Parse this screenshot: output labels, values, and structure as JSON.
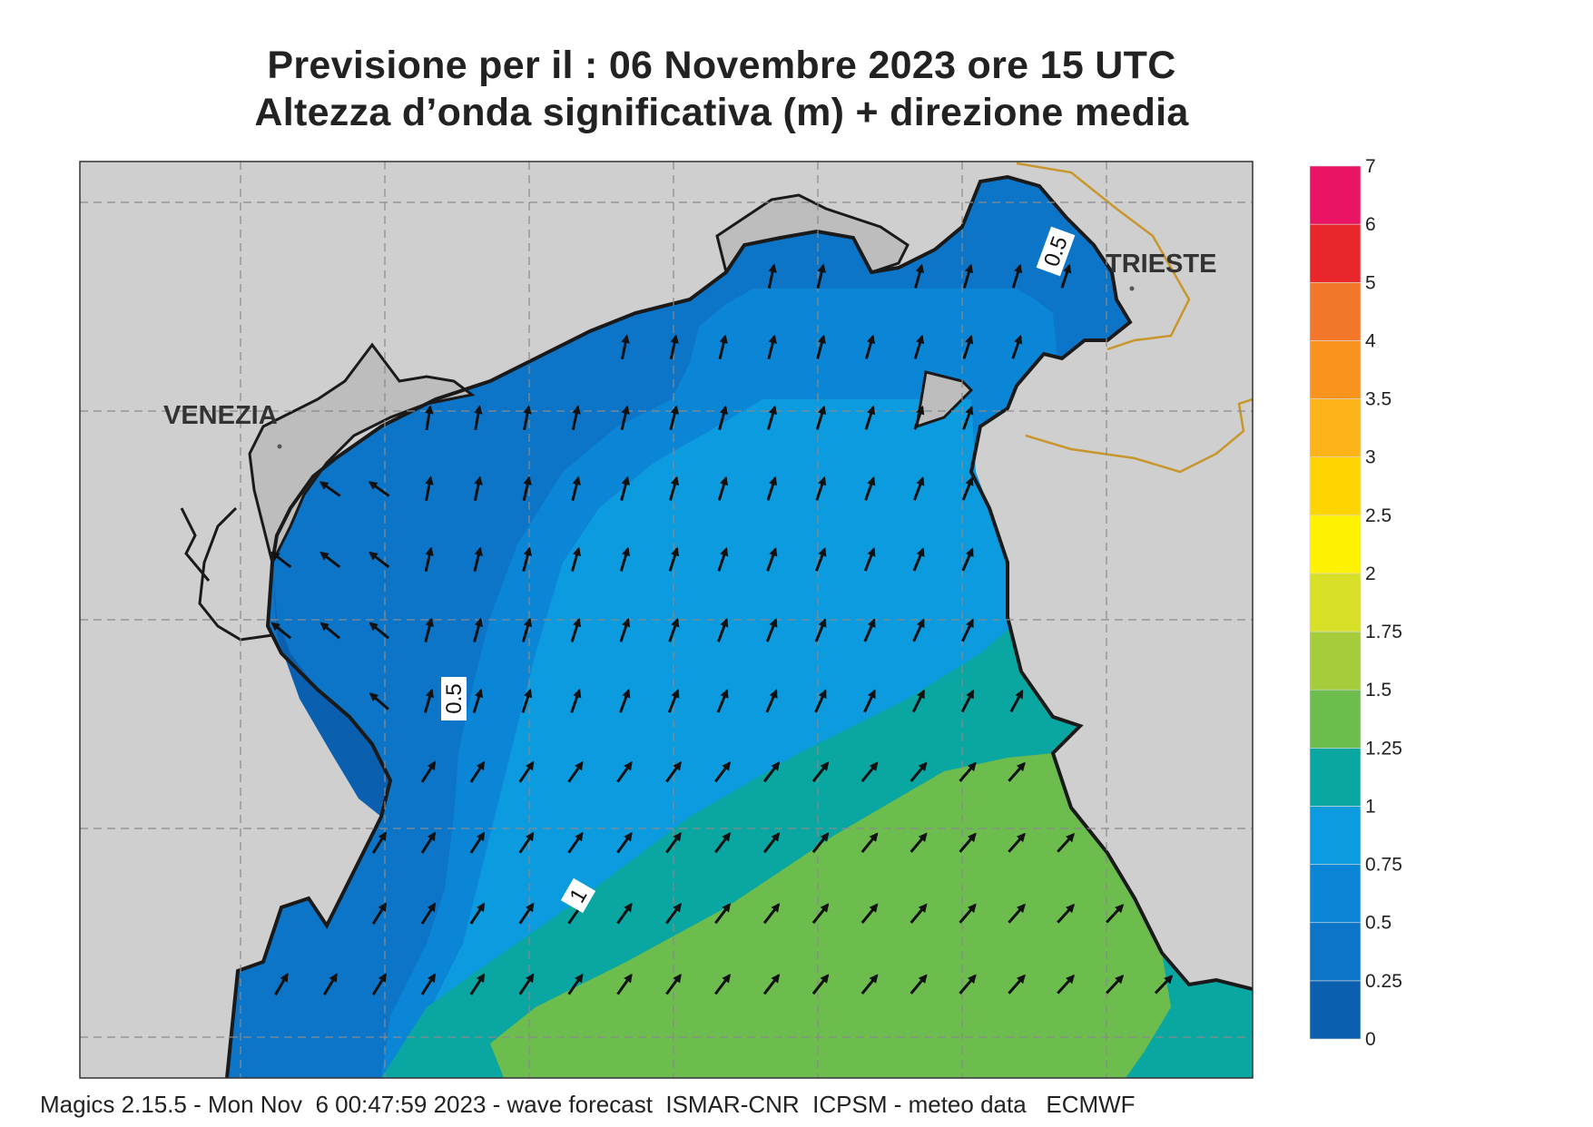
{
  "title": {
    "line1": "Previsione per il  :  06 Novembre  2023   ore 15 UTC",
    "line2": "Altezza d’onda significativa (m) + direzione media"
  },
  "places": {
    "venezia": "VENEZIA",
    "trieste": "TRIESTE"
  },
  "contour_labels": {
    "c1": "0.5",
    "c2": "0.5",
    "c3": "1"
  },
  "legend": {
    "colors": [
      "#0a5faf",
      "#0c75c8",
      "#0b86d6",
      "#0d9bdf",
      "#0aa6a2",
      "#6cbd4e",
      "#a6cc3c",
      "#d7e026",
      "#fff200",
      "#ffd500",
      "#fdb31a",
      "#f8931d",
      "#f3772a",
      "#e8262b",
      "#ea1464"
    ],
    "labels": [
      "0",
      "0.25",
      "0.5",
      "0.75",
      "1",
      "1.25",
      "1.5",
      "1.75",
      "2",
      "2.5",
      "3",
      "3.5",
      "4",
      "5",
      "6",
      "7"
    ]
  },
  "footer": "Magics 2.15.5 - Mon Nov  6 00:47:59 2023 - wave forecast  ISMAR-CNR  ICPSM - meteo data   ECMWF",
  "colors": {
    "land": "#cfcfcf",
    "lagoon_land": "#bdbdbd",
    "sea_025": "#0a5faf",
    "sea_05": "#0c75c8",
    "sea_075": "#0b86d6",
    "sea_1": "#0d9bdf",
    "sea_125": "#0aa6a2",
    "sea_15": "#6cbd4e",
    "border": "#c8962a"
  }
}
